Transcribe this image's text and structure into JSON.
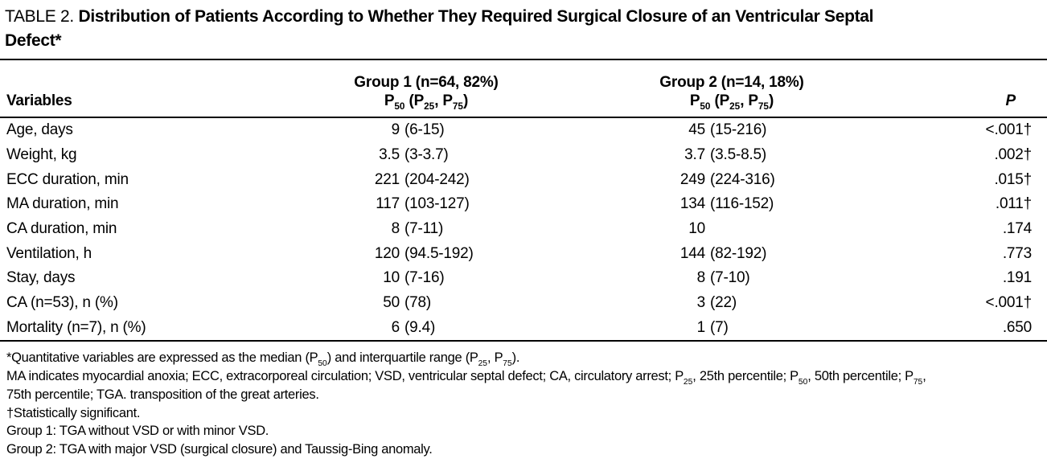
{
  "colors": {
    "background": "#ffffff",
    "text": "#000000",
    "rule": "#000000"
  },
  "title": {
    "prefix": "TABLE 2.",
    "line1": "Distribution of Patients According to Whether They Required Surgical Closure of an Ventricular Septal",
    "line2": "Defect*"
  },
  "table": {
    "columns": {
      "variables": "Variables",
      "group1_line1": "Group 1 (n=64, 82%)",
      "group1_line2": "P~50~ (P~25~, P~75~)",
      "group2_line1": "Group 2 (n=14, 18%)",
      "group2_line2": "P~50~ (P~25~, P~75~)",
      "p": "P"
    },
    "rows": [
      {
        "variable": "Age, days",
        "g1_med": "9",
        "g1_range": "(6-15)",
        "g2_med": "45",
        "g2_range": "(15-216)",
        "p": "<.001†"
      },
      {
        "variable": "Weight, kg",
        "g1_med": "3.5",
        "g1_range": "(3-3.7)",
        "g2_med": "3.7",
        "g2_range": "(3.5-8.5)",
        "p": ".002†"
      },
      {
        "variable": "ECC duration, min",
        "g1_med": "221",
        "g1_range": "(204-242)",
        "g2_med": "249",
        "g2_range": "(224-316)",
        "p": ".015†"
      },
      {
        "variable": "MA duration, min",
        "g1_med": "117",
        "g1_range": "(103-127)",
        "g2_med": "134",
        "g2_range": "(116-152)",
        "p": ".011†"
      },
      {
        "variable": "CA duration, min",
        "g1_med": "8",
        "g1_range": "(7-11)",
        "g2_med": "10",
        "g2_range": "",
        "p": ".174"
      },
      {
        "variable": "Ventilation, h",
        "g1_med": "120",
        "g1_range": "(94.5-192)",
        "g2_med": "144",
        "g2_range": "(82-192)",
        "p": ".773"
      },
      {
        "variable": "Stay, days",
        "g1_med": "10",
        "g1_range": "(7-16)",
        "g2_med": "8",
        "g2_range": "(7-10)",
        "p": ".191"
      },
      {
        "variable": "CA (n=53), n (%)",
        "g1_med": "50",
        "g1_range": "(78)",
        "g2_med": "3",
        "g2_range": "(22)",
        "p": "<.001†"
      },
      {
        "variable": "Mortality (n=7), n (%)",
        "g1_med": "6",
        "g1_range": "(9.4)",
        "g2_med": "1",
        "g2_range": "(7)",
        "p": ".650"
      }
    ]
  },
  "footnotes": [
    "*Quantitative variables are expressed as the median (P~50~) and interquartile range (P~25~, P~75~).",
    "MA indicates myocardial anoxia; ECC, extracorporeal circulation; VSD, ventricular septal defect; CA, circulatory arrest; P~25~, 25th percentile; P~50~, 50th percentile; P~75~,",
    "75th percentile; TGA. transposition of the great arteries.",
    "†Statistically significant.",
    "Group 1: TGA without VSD or with minor VSD.",
    "Group 2: TGA with major VSD (surgical closure) and Taussig-Bing anomaly."
  ]
}
